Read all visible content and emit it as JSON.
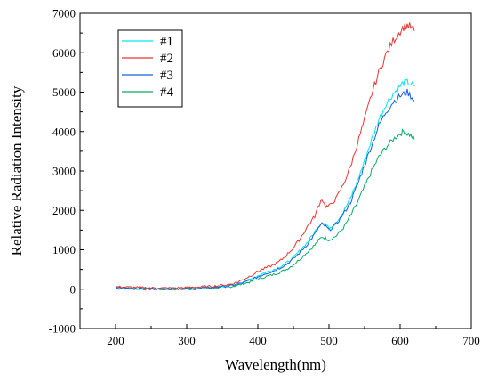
{
  "chart_data": {
    "type": "line",
    "xlabel": "Wavelength(nm)",
    "ylabel": "Relative Radiation Intensity",
    "xlim": [
      150,
      700
    ],
    "ylim": [
      -1000,
      7000
    ],
    "xticks": [
      200,
      300,
      400,
      500,
      600,
      700
    ],
    "yticks": [
      -1000,
      0,
      1000,
      2000,
      3000,
      4000,
      5000,
      6000,
      7000
    ],
    "legend_position": "top-left",
    "grid": false,
    "x": [
      200,
      220,
      240,
      260,
      280,
      300,
      320,
      340,
      360,
      370,
      380,
      390,
      400,
      410,
      420,
      430,
      440,
      450,
      460,
      470,
      480,
      485,
      490,
      495,
      500,
      510,
      520,
      530,
      540,
      550,
      560,
      570,
      580,
      590,
      600,
      605,
      610,
      615,
      620
    ],
    "series": [
      {
        "name": "#1",
        "color": "#00e5ee",
        "values": [
          50,
          40,
          30,
          20,
          20,
          30,
          40,
          60,
          90,
          130,
          180,
          250,
          340,
          420,
          480,
          560,
          660,
          800,
          1000,
          1200,
          1450,
          1600,
          1700,
          1650,
          1550,
          1700,
          1950,
          2300,
          2750,
          3250,
          3800,
          4300,
          4700,
          4950,
          5150,
          5250,
          5250,
          5200,
          5150
        ]
      },
      {
        "name": "#2",
        "color": "#ee3333",
        "values": [
          60,
          50,
          40,
          30,
          30,
          40,
          60,
          80,
          120,
          170,
          250,
          340,
          450,
          530,
          600,
          700,
          860,
          1050,
          1300,
          1600,
          1850,
          2100,
          2300,
          2100,
          2100,
          2300,
          2650,
          3100,
          3700,
          4300,
          4950,
          5500,
          5950,
          6300,
          6550,
          6650,
          6700,
          6650,
          6550
        ]
      },
      {
        "name": "#3",
        "color": "#1560dd",
        "values": [
          40,
          30,
          20,
          10,
          10,
          20,
          30,
          50,
          80,
          120,
          170,
          230,
          310,
          390,
          450,
          530,
          630,
          770,
          950,
          1150,
          1400,
          1550,
          1650,
          1600,
          1500,
          1650,
          1900,
          2200,
          2650,
          3150,
          3650,
          4150,
          4500,
          4750,
          4900,
          4950,
          5000,
          4900,
          4800
        ]
      },
      {
        "name": "#4",
        "color": "#0aaa66",
        "values": [
          20,
          10,
          0,
          0,
          0,
          0,
          10,
          30,
          60,
          90,
          140,
          190,
          250,
          310,
          360,
          420,
          500,
          620,
          780,
          950,
          1120,
          1230,
          1330,
          1300,
          1250,
          1350,
          1550,
          1850,
          2200,
          2600,
          3000,
          3350,
          3600,
          3800,
          3950,
          4000,
          3950,
          3900,
          3800
        ]
      }
    ]
  }
}
